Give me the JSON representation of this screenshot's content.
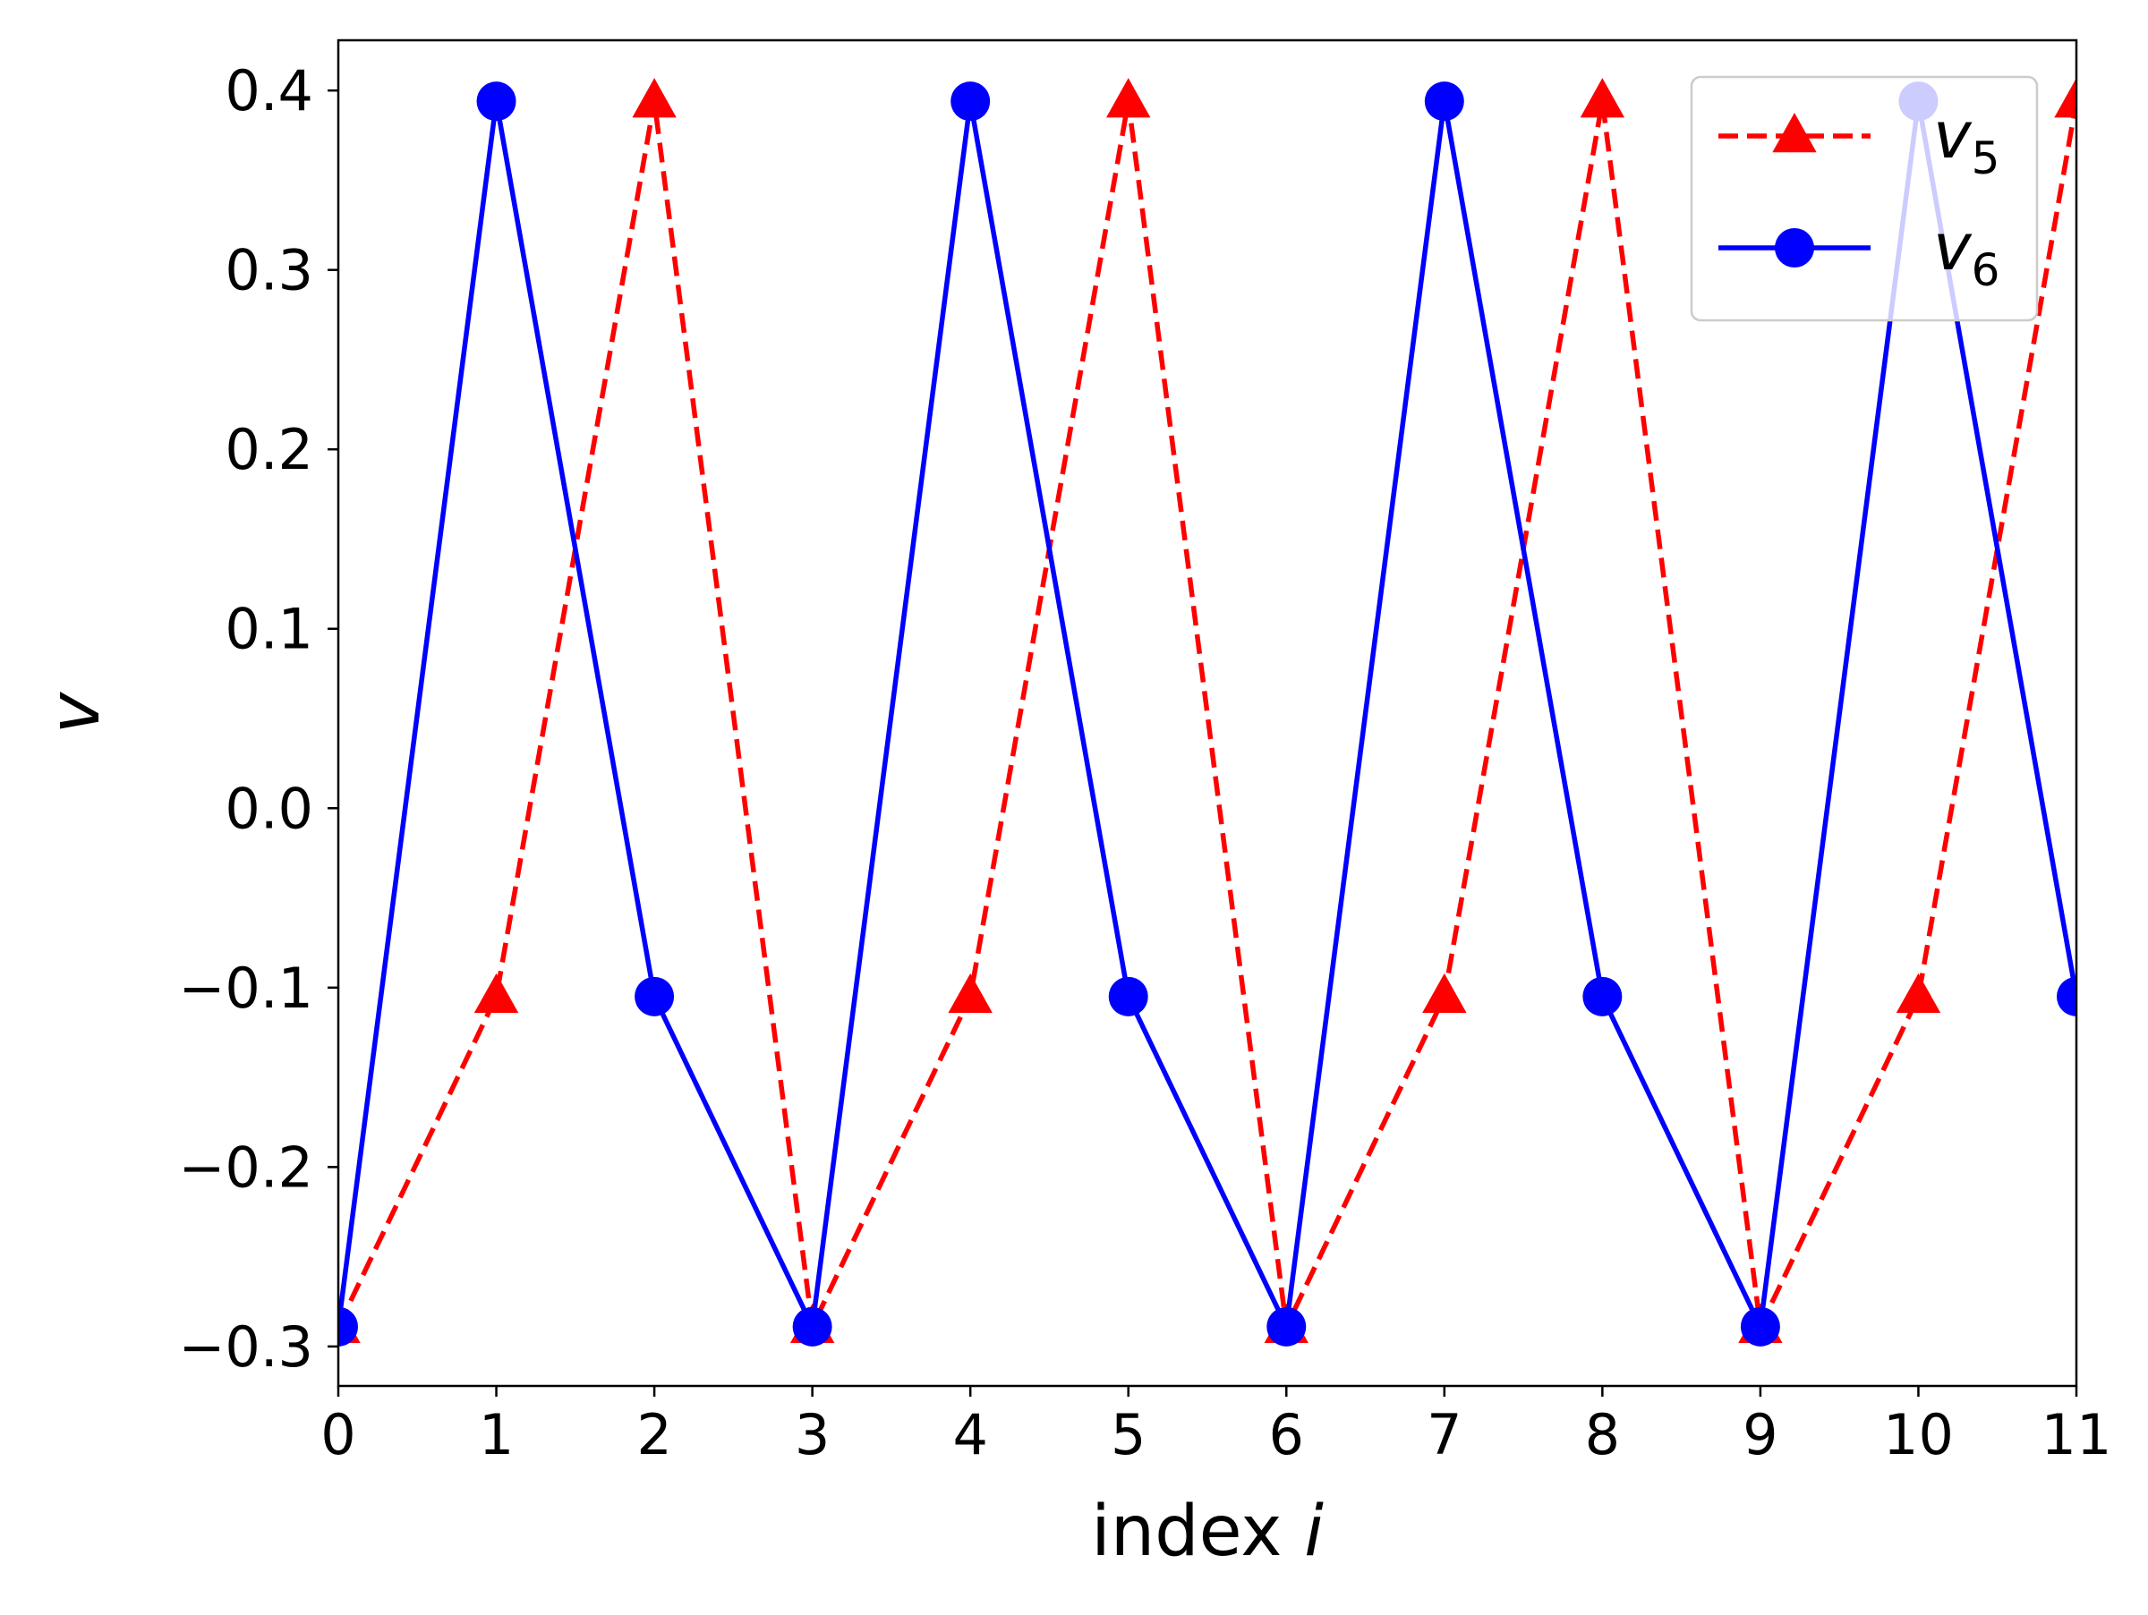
{
  "chart_data": {
    "type": "line",
    "xlabel": "index",
    "xlabel_var": "i",
    "ylabel": "v",
    "x": [
      0,
      1,
      2,
      3,
      4,
      5,
      6,
      7,
      8,
      9,
      10,
      11
    ],
    "xlim": [
      0,
      11
    ],
    "ylim": [
      -0.322,
      0.428
    ],
    "xticks": [
      0,
      1,
      2,
      3,
      4,
      5,
      6,
      7,
      8,
      9,
      10,
      11
    ],
    "xtick_labels": [
      "0",
      "1",
      "2",
      "3",
      "4",
      "5",
      "6",
      "7",
      "8",
      "9",
      "10",
      "11"
    ],
    "yticks": [
      0.4,
      0.3,
      0.2,
      0.1,
      0.0,
      -0.1,
      -0.2,
      -0.3
    ],
    "ytick_labels": [
      "0.4",
      "0.3",
      "0.2",
      "0.1",
      "0.0",
      "−0.1",
      "−0.2",
      "−0.3"
    ],
    "grid": false,
    "legend_position": "top-right",
    "series": [
      {
        "name": "v",
        "name_sub": "5",
        "color": "#ff0000",
        "line_style": "dashed",
        "marker": "triangle",
        "values": [
          -0.289,
          -0.105,
          0.394,
          -0.289,
          -0.105,
          0.394,
          -0.289,
          -0.105,
          0.394,
          -0.289,
          -0.105,
          0.394
        ]
      },
      {
        "name": "v",
        "name_sub": "6",
        "color": "#0000ff",
        "line_style": "solid",
        "marker": "circle",
        "values": [
          -0.289,
          0.394,
          -0.105,
          -0.289,
          0.394,
          -0.105,
          -0.289,
          0.394,
          -0.105,
          -0.289,
          0.394,
          -0.105
        ]
      }
    ]
  }
}
